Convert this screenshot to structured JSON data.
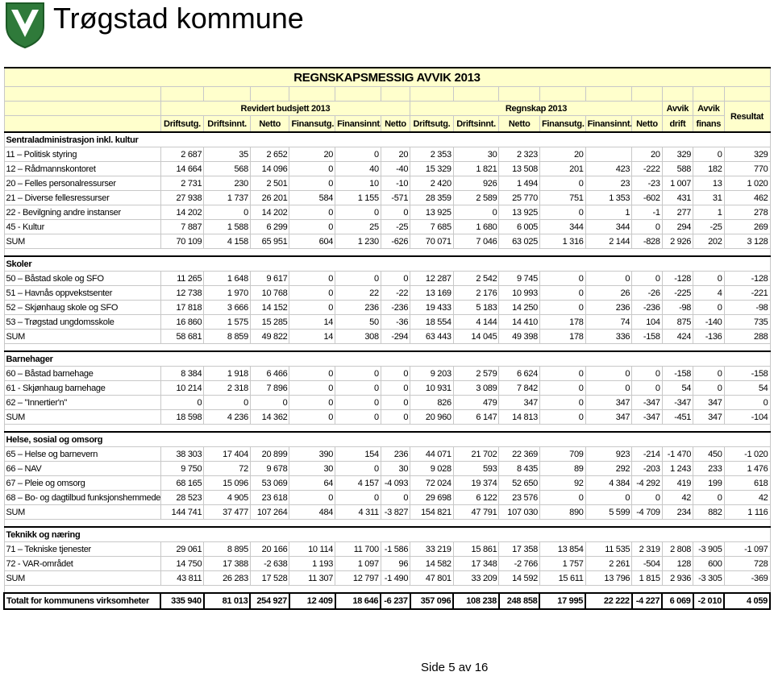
{
  "header": {
    "title": "Trøgstad kommune"
  },
  "table": {
    "title": "REGNSKAPSMESSIG AVVIK 2013",
    "groups": [
      "Revidert budsjett 2013",
      "Regnskap 2013",
      "Avvik",
      "Avvik",
      "Resultat"
    ],
    "subheaders": [
      "Driftsutg.",
      "Driftsinnt.",
      "Netto",
      "Finansutg.",
      "Finansinnt.",
      "Netto",
      "Driftsutg.",
      "Driftsinnt.",
      "Netto",
      "Finansutg.",
      "Finansinnt.",
      "Netto",
      "drift",
      "finans"
    ],
    "sections": [
      {
        "name": "Sentraladministrasjon inkl. kultur",
        "rows": [
          [
            "11 – Politisk styring",
            "2 687",
            "35",
            "2 652",
            "20",
            "0",
            "20",
            "2 353",
            "30",
            "2 323",
            "20",
            null,
            "20",
            "329",
            "0",
            "329"
          ],
          [
            "12 – Rådmannskontoret",
            "14 664",
            "568",
            "14 096",
            "0",
            "40",
            "-40",
            "15 329",
            "1 821",
            "13 508",
            "201",
            "423",
            "-222",
            "588",
            "182",
            "770"
          ],
          [
            "20 – Felles personalressurser",
            "2 731",
            "230",
            "2 501",
            "0",
            "10",
            "-10",
            "2 420",
            "926",
            "1 494",
            "0",
            "23",
            "-23",
            "1 007",
            "13",
            "1 020"
          ],
          [
            "21 – Diverse fellesressurser",
            "27 938",
            "1 737",
            "26 201",
            "584",
            "1 155",
            "-571",
            "28 359",
            "2 589",
            "25 770",
            "751",
            "1 353",
            "-602",
            "431",
            "31",
            "462"
          ],
          [
            "22 - Bevilgning andre instanser",
            "14 202",
            "0",
            "14 202",
            "0",
            "0",
            "0",
            "13 925",
            "0",
            "13 925",
            "0",
            "1",
            "-1",
            "277",
            "1",
            "278"
          ],
          [
            "45 - Kultur",
            "7 887",
            "1 588",
            "6 299",
            "0",
            "25",
            "-25",
            "7 685",
            "1 680",
            "6 005",
            "344",
            "344",
            "0",
            "294",
            "-25",
            "269"
          ],
          [
            "SUM",
            "70 109",
            "4 158",
            "65 951",
            "604",
            "1 230",
            "-626",
            "70 071",
            "7 046",
            "63 025",
            "1 316",
            "2 144",
            "-828",
            "2 926",
            "202",
            "3 128"
          ]
        ]
      },
      {
        "name": "Skoler",
        "rows": [
          [
            "50 – Båstad skole og SFO",
            "11 265",
            "1 648",
            "9 617",
            "0",
            "0",
            "0",
            "12 287",
            "2 542",
            "9 745",
            "0",
            "0",
            "0",
            "-128",
            "0",
            "-128"
          ],
          [
            "51 – Havnås oppvekstsenter",
            "12 738",
            "1 970",
            "10 768",
            "0",
            "22",
            "-22",
            "13 169",
            "2 176",
            "10 993",
            "0",
            "26",
            "-26",
            "-225",
            "4",
            "-221"
          ],
          [
            "52 – Skjønhaug skole og SFO",
            "17 818",
            "3 666",
            "14 152",
            "0",
            "236",
            "-236",
            "19 433",
            "5 183",
            "14 250",
            "0",
            "236",
            "-236",
            "-98",
            "0",
            "-98"
          ],
          [
            "53 – Trøgstad ungdomsskole",
            "16 860",
            "1 575",
            "15 285",
            "14",
            "50",
            "-36",
            "18 554",
            "4 144",
            "14 410",
            "178",
            "74",
            "104",
            "875",
            "-140",
            "735"
          ],
          [
            "SUM",
            "58 681",
            "8 859",
            "49 822",
            "14",
            "308",
            "-294",
            "63 443",
            "14 045",
            "49 398",
            "178",
            "336",
            "-158",
            "424",
            "-136",
            "288"
          ]
        ]
      },
      {
        "name": "Barnehager",
        "rows": [
          [
            "60 – Båstad barnehage",
            "8 384",
            "1 918",
            "6 466",
            "0",
            "0",
            "0",
            "9 203",
            "2 579",
            "6 624",
            "0",
            "0",
            "0",
            "-158",
            "0",
            "-158"
          ],
          [
            "61 - Skjønhaug barnehage",
            "10 214",
            "2 318",
            "7 896",
            "0",
            "0",
            "0",
            "10 931",
            "3 089",
            "7 842",
            "0",
            "0",
            "0",
            "54",
            "0",
            "54"
          ],
          [
            "62 – \"Innertier'n\"",
            "0",
            "0",
            "0",
            "0",
            "0",
            "0",
            "826",
            "479",
            "347",
            "0",
            "347",
            "-347",
            "-347",
            "347",
            "0"
          ],
          [
            "SUM",
            "18 598",
            "4 236",
            "14 362",
            "0",
            "0",
            "0",
            "20 960",
            "6 147",
            "14 813",
            "0",
            "347",
            "-347",
            "-451",
            "347",
            "-104"
          ]
        ]
      },
      {
        "name": "Helse, sosial og omsorg",
        "rows": [
          [
            "65 – Helse og barnevern",
            "38 303",
            "17 404",
            "20 899",
            "390",
            "154",
            "236",
            "44 071",
            "21 702",
            "22 369",
            "709",
            "923",
            "-214",
            "-1 470",
            "450",
            "-1 020"
          ],
          [
            "66 – NAV",
            "9 750",
            "72",
            "9 678",
            "30",
            "0",
            "30",
            "9 028",
            "593",
            "8 435",
            "89",
            "292",
            "-203",
            "1 243",
            "233",
            "1 476"
          ],
          [
            "67 – Pleie og omsorg",
            "68 165",
            "15 096",
            "53 069",
            "64",
            "4 157",
            "-4 093",
            "72 024",
            "19 374",
            "52 650",
            "92",
            "4 384",
            "-4 292",
            "419",
            "199",
            "618"
          ],
          [
            "68 – Bo- og dagtilbud funksjonshemmede",
            "28 523",
            "4 905",
            "23 618",
            "0",
            "0",
            "0",
            "29 698",
            "6 122",
            "23 576",
            "0",
            "0",
            "0",
            "42",
            "0",
            "42"
          ],
          [
            "SUM",
            "144 741",
            "37 477",
            "107 264",
            "484",
            "4 311",
            "-3 827",
            "154 821",
            "47 791",
            "107 030",
            "890",
            "5 599",
            "-4 709",
            "234",
            "882",
            "1 116"
          ]
        ]
      },
      {
        "name": "Teknikk og næring",
        "rows": [
          [
            "71 – Tekniske tjenester",
            "29 061",
            "8 895",
            "20 166",
            "10 114",
            "11 700",
            "-1 586",
            "33 219",
            "15 861",
            "17 358",
            "13 854",
            "11 535",
            "2 319",
            "2 808",
            "-3 905",
            "-1 097"
          ],
          [
            "72 - VAR-området",
            "14 750",
            "17 388",
            "-2 638",
            "1 193",
            "1 097",
            "96",
            "14 582",
            "17 348",
            "-2 766",
            "1 757",
            "2 261",
            "-504",
            "128",
            "600",
            "728"
          ],
          [
            "SUM",
            "43 811",
            "26 283",
            "17 528",
            "11 307",
            "12 797",
            "-1 490",
            "47 801",
            "33 209",
            "14 592",
            "15 611",
            "13 796",
            "1 815",
            "2 936",
            "-3 305",
            "-369"
          ]
        ]
      }
    ],
    "total": [
      "Totalt for kommunens virksomheter",
      "335 940",
      "81 013",
      "254 927",
      "12 409",
      "18 646",
      "-6 237",
      "357 096",
      "108 238",
      "248 858",
      "17 995",
      "22 222",
      "-4 227",
      "6 069",
      "-2 010",
      "4 059"
    ]
  },
  "footer": {
    "page": "Side 5 av 16"
  }
}
